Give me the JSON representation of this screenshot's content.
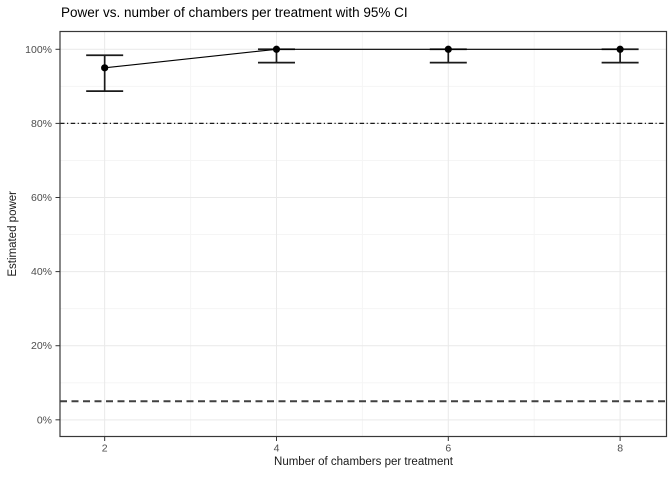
{
  "chart_data": {
    "type": "line",
    "title": "Power vs. number of chambers per treatment with 95% CI",
    "xlabel": "Number of chambers per treatment",
    "ylabel": "Estimated power",
    "x": [
      2,
      4,
      6,
      8
    ],
    "series": [
      {
        "name": "estimated_power_pct",
        "values": [
          95,
          100,
          100,
          100
        ],
        "ci_lower": [
          88.7,
          96.4,
          96.4,
          96.4
        ],
        "ci_upper": [
          98.4,
          100,
          100,
          100
        ]
      }
    ],
    "x_ticks": [
      "2",
      "4",
      "6",
      "8"
    ],
    "x_tick_values": [
      2,
      4,
      6,
      8
    ],
    "y_ticks": [
      "0%",
      "20%",
      "40%",
      "60%",
      "80%",
      "100%"
    ],
    "y_tick_values": [
      0,
      20,
      40,
      60,
      80,
      100
    ],
    "x_minor": [
      3,
      5,
      7
    ],
    "y_minor": [
      10,
      30,
      50,
      70,
      90
    ],
    "reference_lines": [
      {
        "value": 80,
        "style": "dashdot"
      },
      {
        "value": 5,
        "style": "dashed"
      }
    ],
    "xlim": [
      1.48,
      8.54
    ],
    "ylim": [
      -4.5,
      104.8
    ],
    "grid": true,
    "legend": "none",
    "colors": {
      "background": "#ffffff",
      "point": "#000000",
      "line": "#000000",
      "error_bar": "#1a1a1a",
      "ref_dashdot": "#1a1a1a",
      "ref_dashed": "#404040",
      "grid_major": "#e9e9e9",
      "grid_minor": "#f5f5f5",
      "panel_border": "#383838",
      "tick": "#333333",
      "tick_label": "#4d4d4d",
      "title": "#000000",
      "axis_title": "#1a1a1a"
    }
  }
}
